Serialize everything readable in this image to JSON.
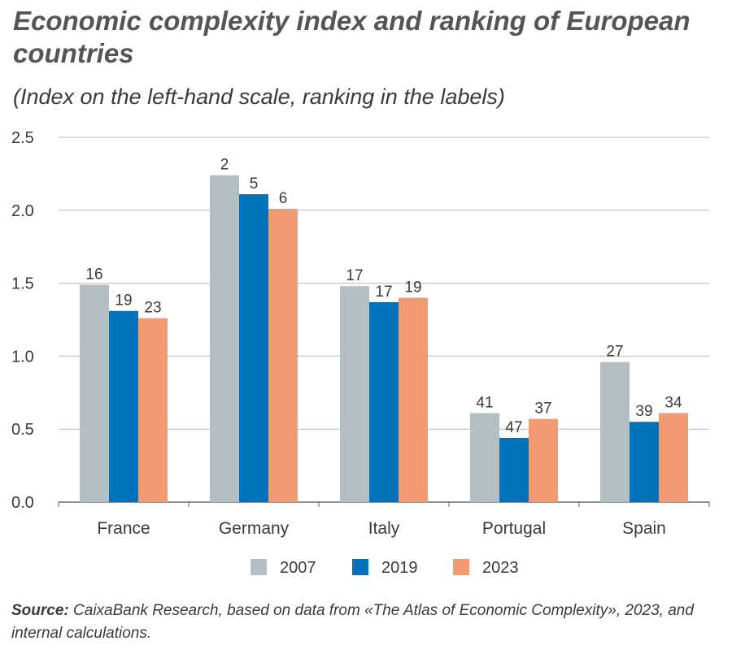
{
  "title": "Economic complexity index and ranking of European countries",
  "subtitle": "(Index on the left-hand scale, ranking in the labels)",
  "source": {
    "label": "Source:",
    "text": "CaixaBank Research, based on data from «The Atlas of Economic Complexity», 2023, and internal calculations."
  },
  "chart_data": {
    "type": "bar",
    "categories": [
      "France",
      "Germany",
      "Italy",
      "Portugal",
      "Spain"
    ],
    "series": [
      {
        "name": "2007",
        "color": "#b3bfc4",
        "values": [
          1.49,
          2.24,
          1.48,
          0.61,
          0.96
        ],
        "labels": [
          "16",
          "2",
          "17",
          "41",
          "27"
        ]
      },
      {
        "name": "2019",
        "color": "#0071bb",
        "values": [
          1.31,
          2.11,
          1.37,
          0.44,
          0.55
        ],
        "labels": [
          "19",
          "5",
          "17",
          "47",
          "39"
        ]
      },
      {
        "name": "2023",
        "color": "#f29a73",
        "values": [
          1.26,
          2.01,
          1.4,
          0.57,
          0.61
        ],
        "labels": [
          "23",
          "6",
          "19",
          "37",
          "34"
        ]
      }
    ],
    "yticks": [
      "0.0",
      "0.5",
      "1.0",
      "1.5",
      "2.0",
      "2.5"
    ],
    "ylim": [
      0,
      2.5
    ],
    "xlabel": "",
    "ylabel": "",
    "grid": true,
    "legend": "bottom-center"
  }
}
